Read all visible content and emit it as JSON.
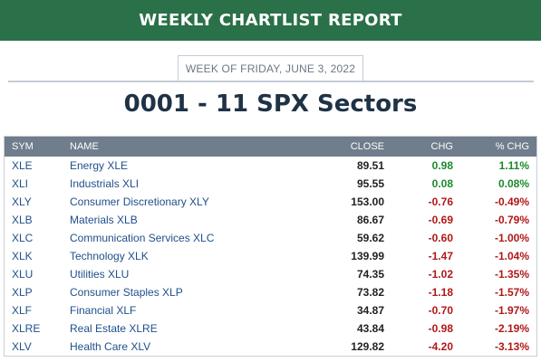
{
  "banner": {
    "title": "WEEKLY CHARTLIST REPORT"
  },
  "week": {
    "label": "WEEK OF FRIDAY, JUNE 3, 2022"
  },
  "page": {
    "title": "0001 - 11 SPX Sectors"
  },
  "colors": {
    "banner": "#2a7048",
    "header": "#6f7d8d",
    "positive": "#1b8a2b",
    "negative": "#b01818",
    "link": "#1f4f8a"
  },
  "table": {
    "headers": {
      "sym": "SYM",
      "name": "NAME",
      "close": "CLOSE",
      "chg": "CHG",
      "pct": "% CHG"
    },
    "rows": [
      {
        "sym": "XLE",
        "name": "Energy XLE",
        "close": "89.51",
        "chg": "0.98",
        "pct": "1.11%",
        "dir": "pos"
      },
      {
        "sym": "XLI",
        "name": "Industrials XLI",
        "close": "95.55",
        "chg": "0.08",
        "pct": "0.08%",
        "dir": "pos"
      },
      {
        "sym": "XLY",
        "name": "Consumer Discretionary XLY",
        "close": "153.00",
        "chg": "-0.76",
        "pct": "-0.49%",
        "dir": "neg"
      },
      {
        "sym": "XLB",
        "name": "Materials XLB",
        "close": "86.67",
        "chg": "-0.69",
        "pct": "-0.79%",
        "dir": "neg"
      },
      {
        "sym": "XLC",
        "name": "Communication Services XLC",
        "close": "59.62",
        "chg": "-0.60",
        "pct": "-1.00%",
        "dir": "neg"
      },
      {
        "sym": "XLK",
        "name": "Technology XLK",
        "close": "139.99",
        "chg": "-1.47",
        "pct": "-1.04%",
        "dir": "neg"
      },
      {
        "sym": "XLU",
        "name": "Utilities XLU",
        "close": "74.35",
        "chg": "-1.02",
        "pct": "-1.35%",
        "dir": "neg"
      },
      {
        "sym": "XLP",
        "name": "Consumer Staples XLP",
        "close": "73.82",
        "chg": "-1.18",
        "pct": "-1.57%",
        "dir": "neg"
      },
      {
        "sym": "XLF",
        "name": "Financial XLF",
        "close": "34.87",
        "chg": "-0.70",
        "pct": "-1.97%",
        "dir": "neg"
      },
      {
        "sym": "XLRE",
        "name": "Real Estate XLRE",
        "close": "43.84",
        "chg": "-0.98",
        "pct": "-2.19%",
        "dir": "neg"
      },
      {
        "sym": "XLV",
        "name": "Health Care XLV",
        "close": "129.82",
        "chg": "-4.20",
        "pct": "-3.13%",
        "dir": "neg"
      }
    ]
  }
}
